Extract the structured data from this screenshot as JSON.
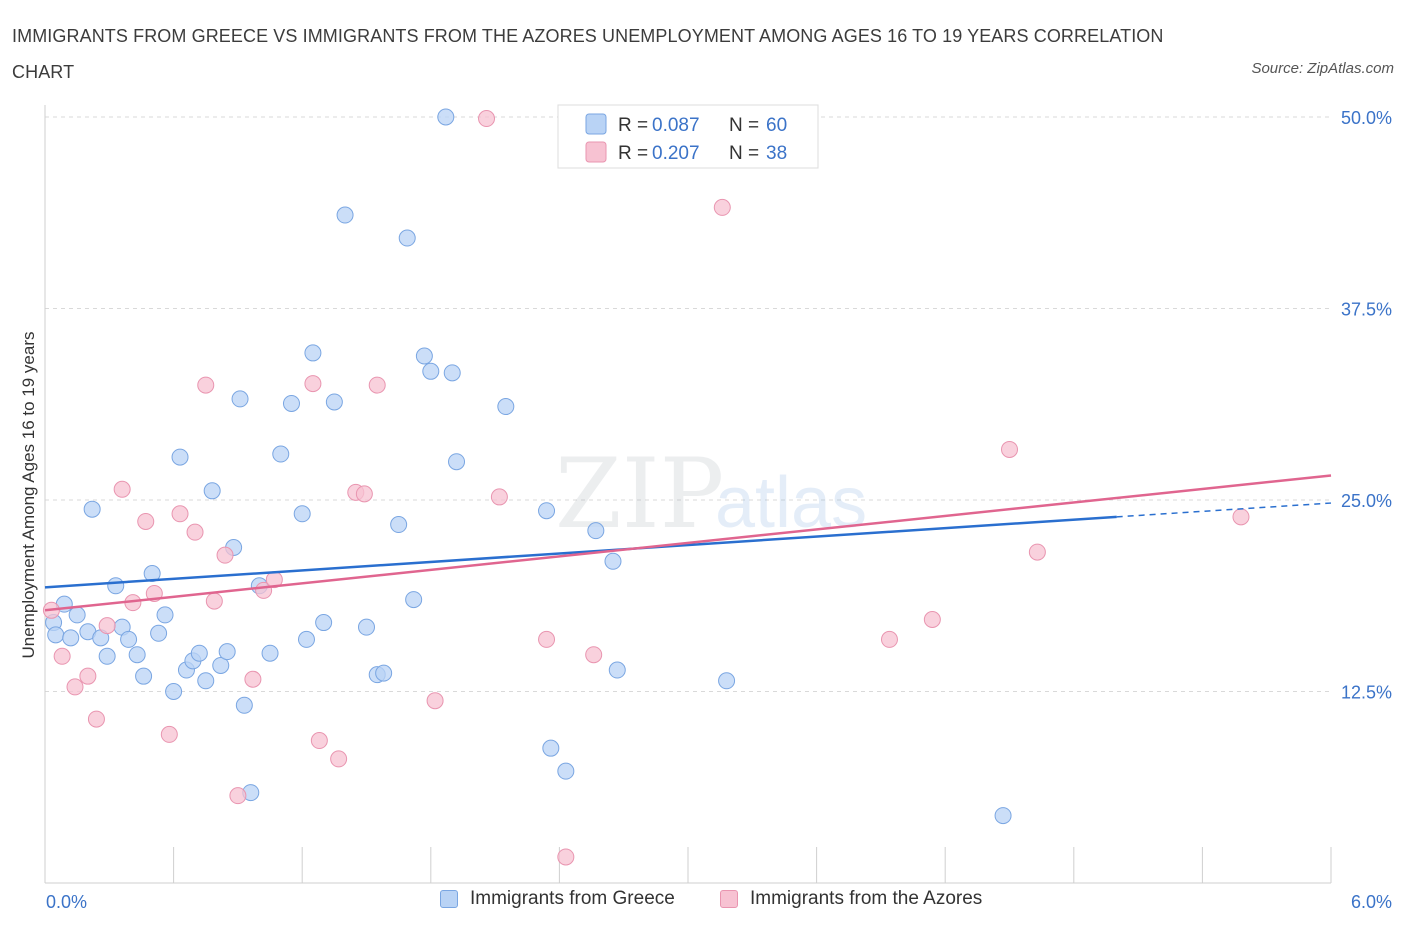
{
  "title": "IMMIGRANTS FROM GREECE VS IMMIGRANTS FROM THE AZORES UNEMPLOYMENT AMONG AGES 16 TO 19 YEARS CORRELATION CHART",
  "source": "Source: ZipAtlas.com",
  "watermark": {
    "zip": "ZIP",
    "atlas": "atlas"
  },
  "colors": {
    "blue_fill": "#b9d3f5",
    "blue_stroke": "#7aa6e2",
    "blue_line": "#2a6fcf",
    "pink_fill": "#f7c2d2",
    "pink_stroke": "#e995b0",
    "pink_line": "#e0658f",
    "tick_label": "#3b73c8",
    "grid": "#d9d9d9"
  },
  "legend_stats": [
    {
      "r_label": "R =",
      "r_value": "0.087",
      "n_label": "N =",
      "n_value": "60"
    },
    {
      "r_label": "R =",
      "r_value": "0.207",
      "n_label": "N =",
      "n_value": "38"
    }
  ],
  "chart_data": {
    "type": "scatter",
    "title": "IMMIGRANTS FROM GREECE VS IMMIGRANTS FROM THE AZORES UNEMPLOYMENT AMONG AGES 16 TO 19 YEARS CORRELATION CHART",
    "xlabel": "",
    "ylabel": "Unemployment Among Ages 16 to 19 years",
    "xlim": [
      0,
      6
    ],
    "ylim": [
      0,
      50
    ],
    "x_tick_labels": [
      "0.0%",
      "6.0%"
    ],
    "y_ticks": [
      12.5,
      25.0,
      37.5,
      50.0
    ],
    "y_tick_labels": [
      "12.5%",
      "25.0%",
      "37.5%",
      "50.0%"
    ],
    "grid": true,
    "legend_position": "top-center",
    "series": [
      {
        "name": "Immigrants from Greece",
        "r": 0.087,
        "n": 60,
        "trend": {
          "x0": 0.0,
          "y0": 19.3,
          "x1": 5.0,
          "y1": 23.9,
          "dash_to_x": 6.0,
          "dash_to_y": 24.8
        },
        "points": [
          [
            0.04,
            17.0
          ],
          [
            0.05,
            16.2
          ],
          [
            0.09,
            18.2
          ],
          [
            0.12,
            16.0
          ],
          [
            0.15,
            17.5
          ],
          [
            0.2,
            16.4
          ],
          [
            0.22,
            24.4
          ],
          [
            0.26,
            16.0
          ],
          [
            0.29,
            14.8
          ],
          [
            0.33,
            19.4
          ],
          [
            0.36,
            16.7
          ],
          [
            0.39,
            15.9
          ],
          [
            0.43,
            14.9
          ],
          [
            0.46,
            13.5
          ],
          [
            0.5,
            20.2
          ],
          [
            0.53,
            16.3
          ],
          [
            0.56,
            17.5
          ],
          [
            0.6,
            12.5
          ],
          [
            0.63,
            27.8
          ],
          [
            0.66,
            13.9
          ],
          [
            0.69,
            14.5
          ],
          [
            0.72,
            15.0
          ],
          [
            0.75,
            13.2
          ],
          [
            0.78,
            25.6
          ],
          [
            0.82,
            14.2
          ],
          [
            0.85,
            15.1
          ],
          [
            0.88,
            21.9
          ],
          [
            0.91,
            31.6
          ],
          [
            0.93,
            11.6
          ],
          [
            0.96,
            5.9
          ],
          [
            1.0,
            19.4
          ],
          [
            1.05,
            15.0
          ],
          [
            1.1,
            28.0
          ],
          [
            1.15,
            31.3
          ],
          [
            1.2,
            24.1
          ],
          [
            1.22,
            15.9
          ],
          [
            1.25,
            34.6
          ],
          [
            1.3,
            17.0
          ],
          [
            1.35,
            31.4
          ],
          [
            1.4,
            43.6
          ],
          [
            1.5,
            16.7
          ],
          [
            1.55,
            13.6
          ],
          [
            1.58,
            13.7
          ],
          [
            1.65,
            23.4
          ],
          [
            1.69,
            42.1
          ],
          [
            1.72,
            18.5
          ],
          [
            1.77,
            34.4
          ],
          [
            1.8,
            33.4
          ],
          [
            1.87,
            50.0
          ],
          [
            1.9,
            33.3
          ],
          [
            1.92,
            27.5
          ],
          [
            2.15,
            31.1
          ],
          [
            2.34,
            24.3
          ],
          [
            2.36,
            8.8
          ],
          [
            2.43,
            7.3
          ],
          [
            2.57,
            23.0
          ],
          [
            2.65,
            21.0
          ],
          [
            2.67,
            13.9
          ],
          [
            3.18,
            13.2
          ],
          [
            4.47,
            4.4
          ]
        ]
      },
      {
        "name": "Immigrants from the Azores",
        "r": 0.207,
        "n": 38,
        "trend": {
          "x0": 0.0,
          "y0": 17.8,
          "x1": 6.0,
          "y1": 26.6
        },
        "points": [
          [
            0.03,
            17.8
          ],
          [
            0.08,
            14.8
          ],
          [
            0.14,
            12.8
          ],
          [
            0.2,
            13.5
          ],
          [
            0.24,
            10.7
          ],
          [
            0.29,
            16.8
          ],
          [
            0.36,
            25.7
          ],
          [
            0.41,
            18.3
          ],
          [
            0.47,
            23.6
          ],
          [
            0.51,
            18.9
          ],
          [
            0.58,
            9.7
          ],
          [
            0.63,
            24.1
          ],
          [
            0.7,
            22.9
          ],
          [
            0.75,
            32.5
          ],
          [
            0.79,
            18.4
          ],
          [
            0.84,
            21.4
          ],
          [
            0.9,
            5.7
          ],
          [
            0.97,
            13.3
          ],
          [
            1.02,
            19.1
          ],
          [
            1.07,
            19.8
          ],
          [
            1.25,
            32.6
          ],
          [
            1.28,
            9.3
          ],
          [
            1.37,
            8.1
          ],
          [
            1.45,
            25.5
          ],
          [
            1.49,
            25.4
          ],
          [
            1.55,
            32.5
          ],
          [
            1.82,
            11.9
          ],
          [
            2.06,
            49.9
          ],
          [
            2.12,
            25.2
          ],
          [
            2.34,
            15.9
          ],
          [
            2.43,
            1.7
          ],
          [
            2.56,
            14.9
          ],
          [
            3.16,
            44.1
          ],
          [
            3.94,
            15.9
          ],
          [
            4.14,
            17.2
          ],
          [
            4.5,
            28.3
          ],
          [
            4.63,
            21.6
          ],
          [
            5.58,
            23.9
          ]
        ]
      }
    ]
  }
}
